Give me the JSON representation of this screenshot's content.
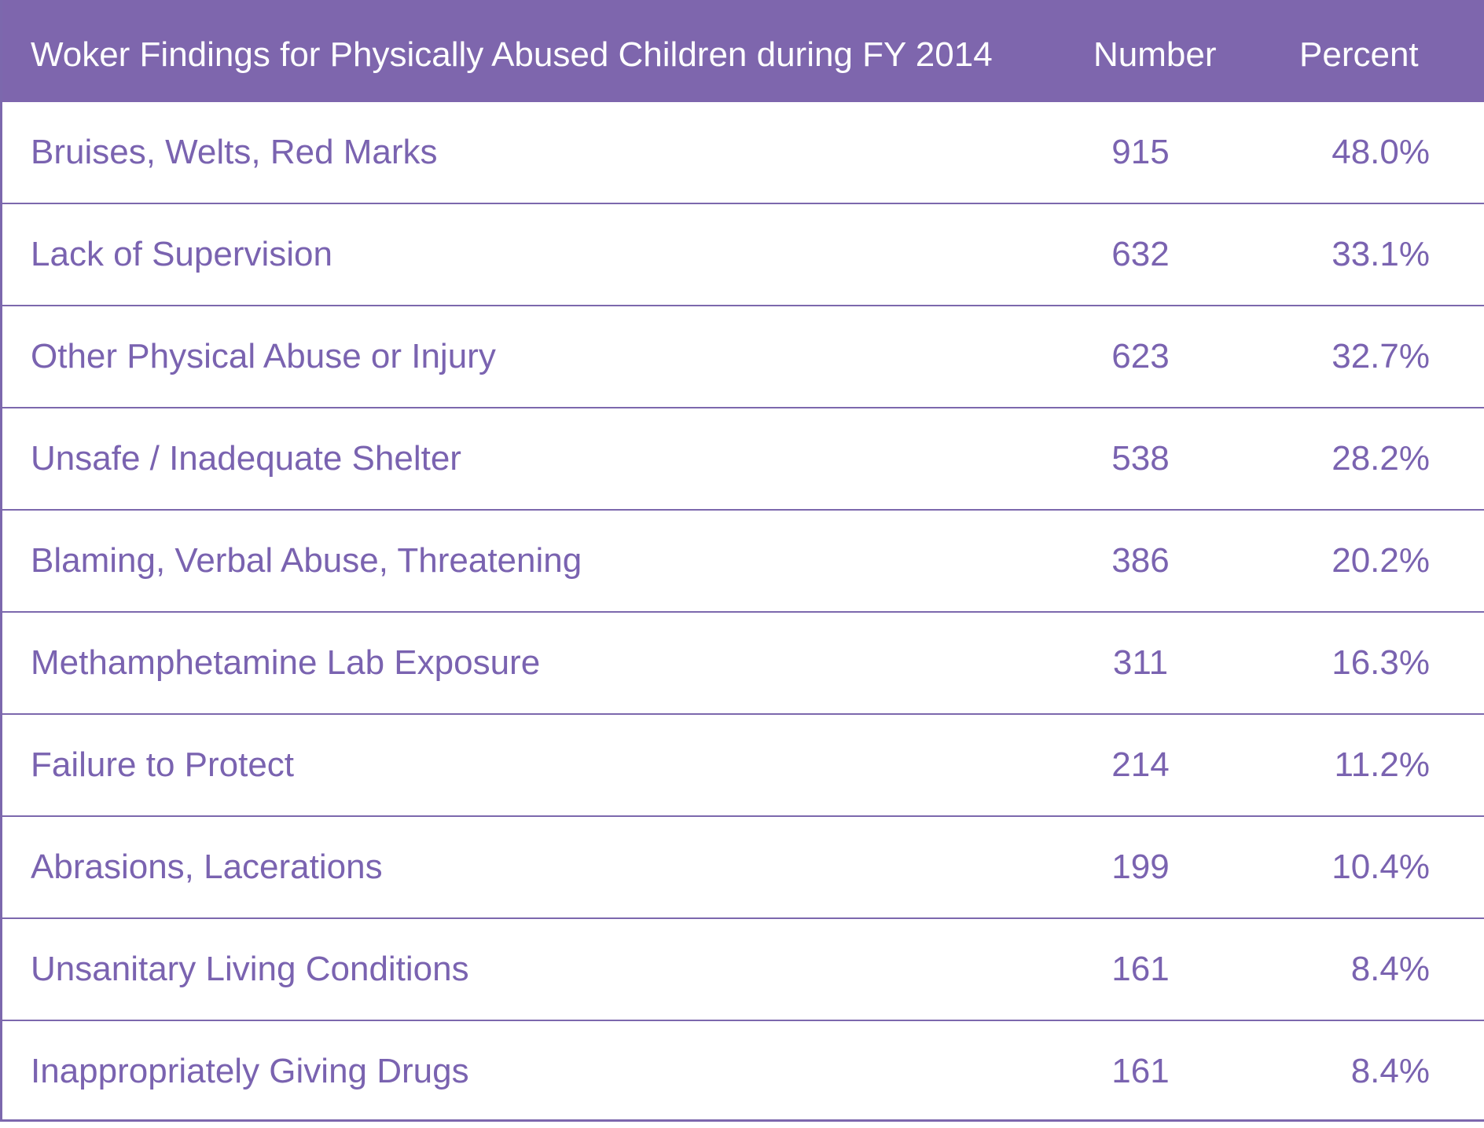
{
  "chart_data": {
    "type": "table",
    "columns": [
      "Woker Findings for Physically Abused Children during FY 2014",
      "Number",
      "Percent"
    ],
    "rows": [
      {
        "label": "Bruises, Welts, Red Marks",
        "number": "915",
        "percent": "48.0%"
      },
      {
        "label": "Lack of Supervision",
        "number": "632",
        "percent": "33.1%"
      },
      {
        "label": "Other Physical Abuse or Injury",
        "number": "623",
        "percent": "32.7%"
      },
      {
        "label": "Unsafe / Inadequate Shelter",
        "number": "538",
        "percent": "28.2%"
      },
      {
        "label": "Blaming, Verbal Abuse, Threatening",
        "number": "386",
        "percent": "20.2%"
      },
      {
        "label": "Methamphetamine Lab Exposure",
        "number": "311",
        "percent": "16.3%"
      },
      {
        "label": "Failure to Protect",
        "number": "214",
        "percent": "11.2%"
      },
      {
        "label": "Abrasions, Lacerations",
        "number": "199",
        "percent": "10.4%"
      },
      {
        "label": "Unsanitary Living Conditions",
        "number": "161",
        "percent": "8.4%"
      },
      {
        "label": "Inappropriately Giving Drugs",
        "number": "161",
        "percent": "8.4%"
      }
    ]
  },
  "colors": {
    "header_background": "#7e66ad",
    "header_text": "#ffffff",
    "body_text": "#7a63b0",
    "rule": "#7c68ad"
  }
}
